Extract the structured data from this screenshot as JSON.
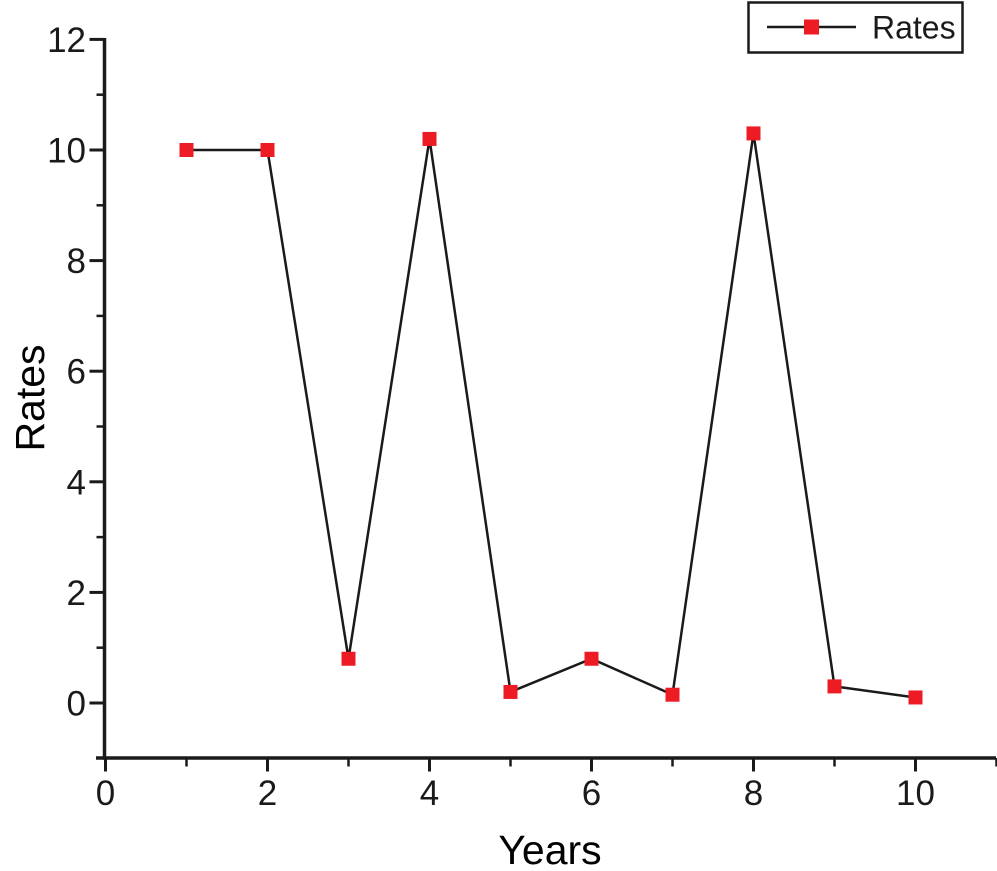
{
  "figure": {
    "background": "#ffffff"
  },
  "chart_data": {
    "type": "line",
    "title": "",
    "xlabel": "Years",
    "ylabel": "Rates",
    "x": [
      1,
      2,
      3,
      4,
      5,
      6,
      7,
      8,
      9,
      10
    ],
    "series": [
      {
        "name": "Rates",
        "values": [
          10,
          10,
          0.8,
          10.2,
          0.2,
          0.8,
          0.15,
          10.3,
          0.3,
          0.1
        ],
        "line_color": "#1a1a1a",
        "marker": "filled-square",
        "marker_color": "#ED1C24",
        "marker_size_px": 14
      }
    ],
    "xlim": [
      0,
      11
    ],
    "ylim": [
      -1,
      12
    ],
    "x_ticks_major": [
      0,
      2,
      4,
      6,
      8,
      10
    ],
    "x_ticks_minor": [
      1,
      3,
      5,
      7,
      9,
      11
    ],
    "y_ticks_major": [
      0,
      2,
      4,
      6,
      8,
      10,
      12
    ],
    "y_ticks_minor": [
      1,
      3,
      5,
      7,
      9,
      11
    ],
    "grid": false,
    "frame": "left-bottom-only",
    "axis_color": "#1a1a1a",
    "text_color": "#1a1a1a",
    "legend": {
      "label": "Rates",
      "position": "top-right",
      "border_color": "#1a1a1a",
      "background": "#ffffff"
    }
  }
}
